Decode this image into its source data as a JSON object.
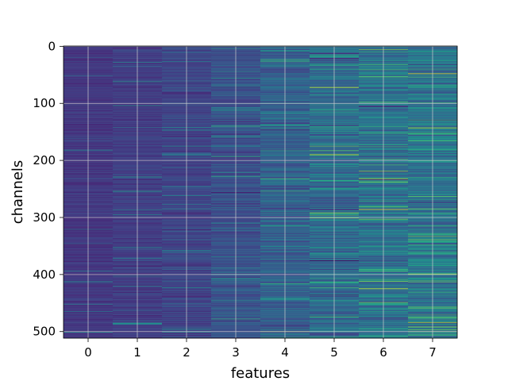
{
  "chart_data": {
    "type": "heatmap",
    "title": "",
    "xlabel": "features",
    "ylabel": "channels",
    "x_categories": [
      "0",
      "1",
      "2",
      "3",
      "4",
      "5",
      "6",
      "7"
    ],
    "x_ticks": [
      0,
      1,
      2,
      3,
      4,
      5,
      6,
      7
    ],
    "y_ticks": [
      0,
      100,
      200,
      300,
      400,
      500
    ],
    "xlim": [
      -0.5,
      7.5
    ],
    "ylim": [
      511.5,
      -0.5
    ],
    "n_channels": 512,
    "n_features": 8,
    "y_axis_inverted": true,
    "grid": true,
    "colormap": "viridis",
    "column_mean_level": [
      0.16,
      0.18,
      0.2,
      0.24,
      0.3,
      0.34,
      0.36,
      0.38
    ],
    "column_spread": [
      0.05,
      0.06,
      0.07,
      0.09,
      0.12,
      0.14,
      0.15,
      0.16
    ],
    "highlight_bands": [
      {
        "feature": 5,
        "channel": 72,
        "value": 0.95
      },
      {
        "feature": 5,
        "channel": 190,
        "value": 0.92
      },
      {
        "feature": 5,
        "channel": 292,
        "value": 0.85
      },
      {
        "feature": 5,
        "channel": 376,
        "value": 0.0
      },
      {
        "feature": 6,
        "channel": 232,
        "value": 0.9
      },
      {
        "feature": 6,
        "channel": 425,
        "value": 0.95
      },
      {
        "feature": 6,
        "channel": 412,
        "value": 0.8
      },
      {
        "feature": 7,
        "channel": 48,
        "value": 0.95
      },
      {
        "feature": 7,
        "channel": 143,
        "value": 0.9
      },
      {
        "feature": 7,
        "channel": 263,
        "value": 0.75
      },
      {
        "feature": 7,
        "channel": 484,
        "value": 0.9
      },
      {
        "feature": 4,
        "channel": 500,
        "value": 0.85
      },
      {
        "feature": 4,
        "channel": 232,
        "value": 0.7
      }
    ]
  }
}
